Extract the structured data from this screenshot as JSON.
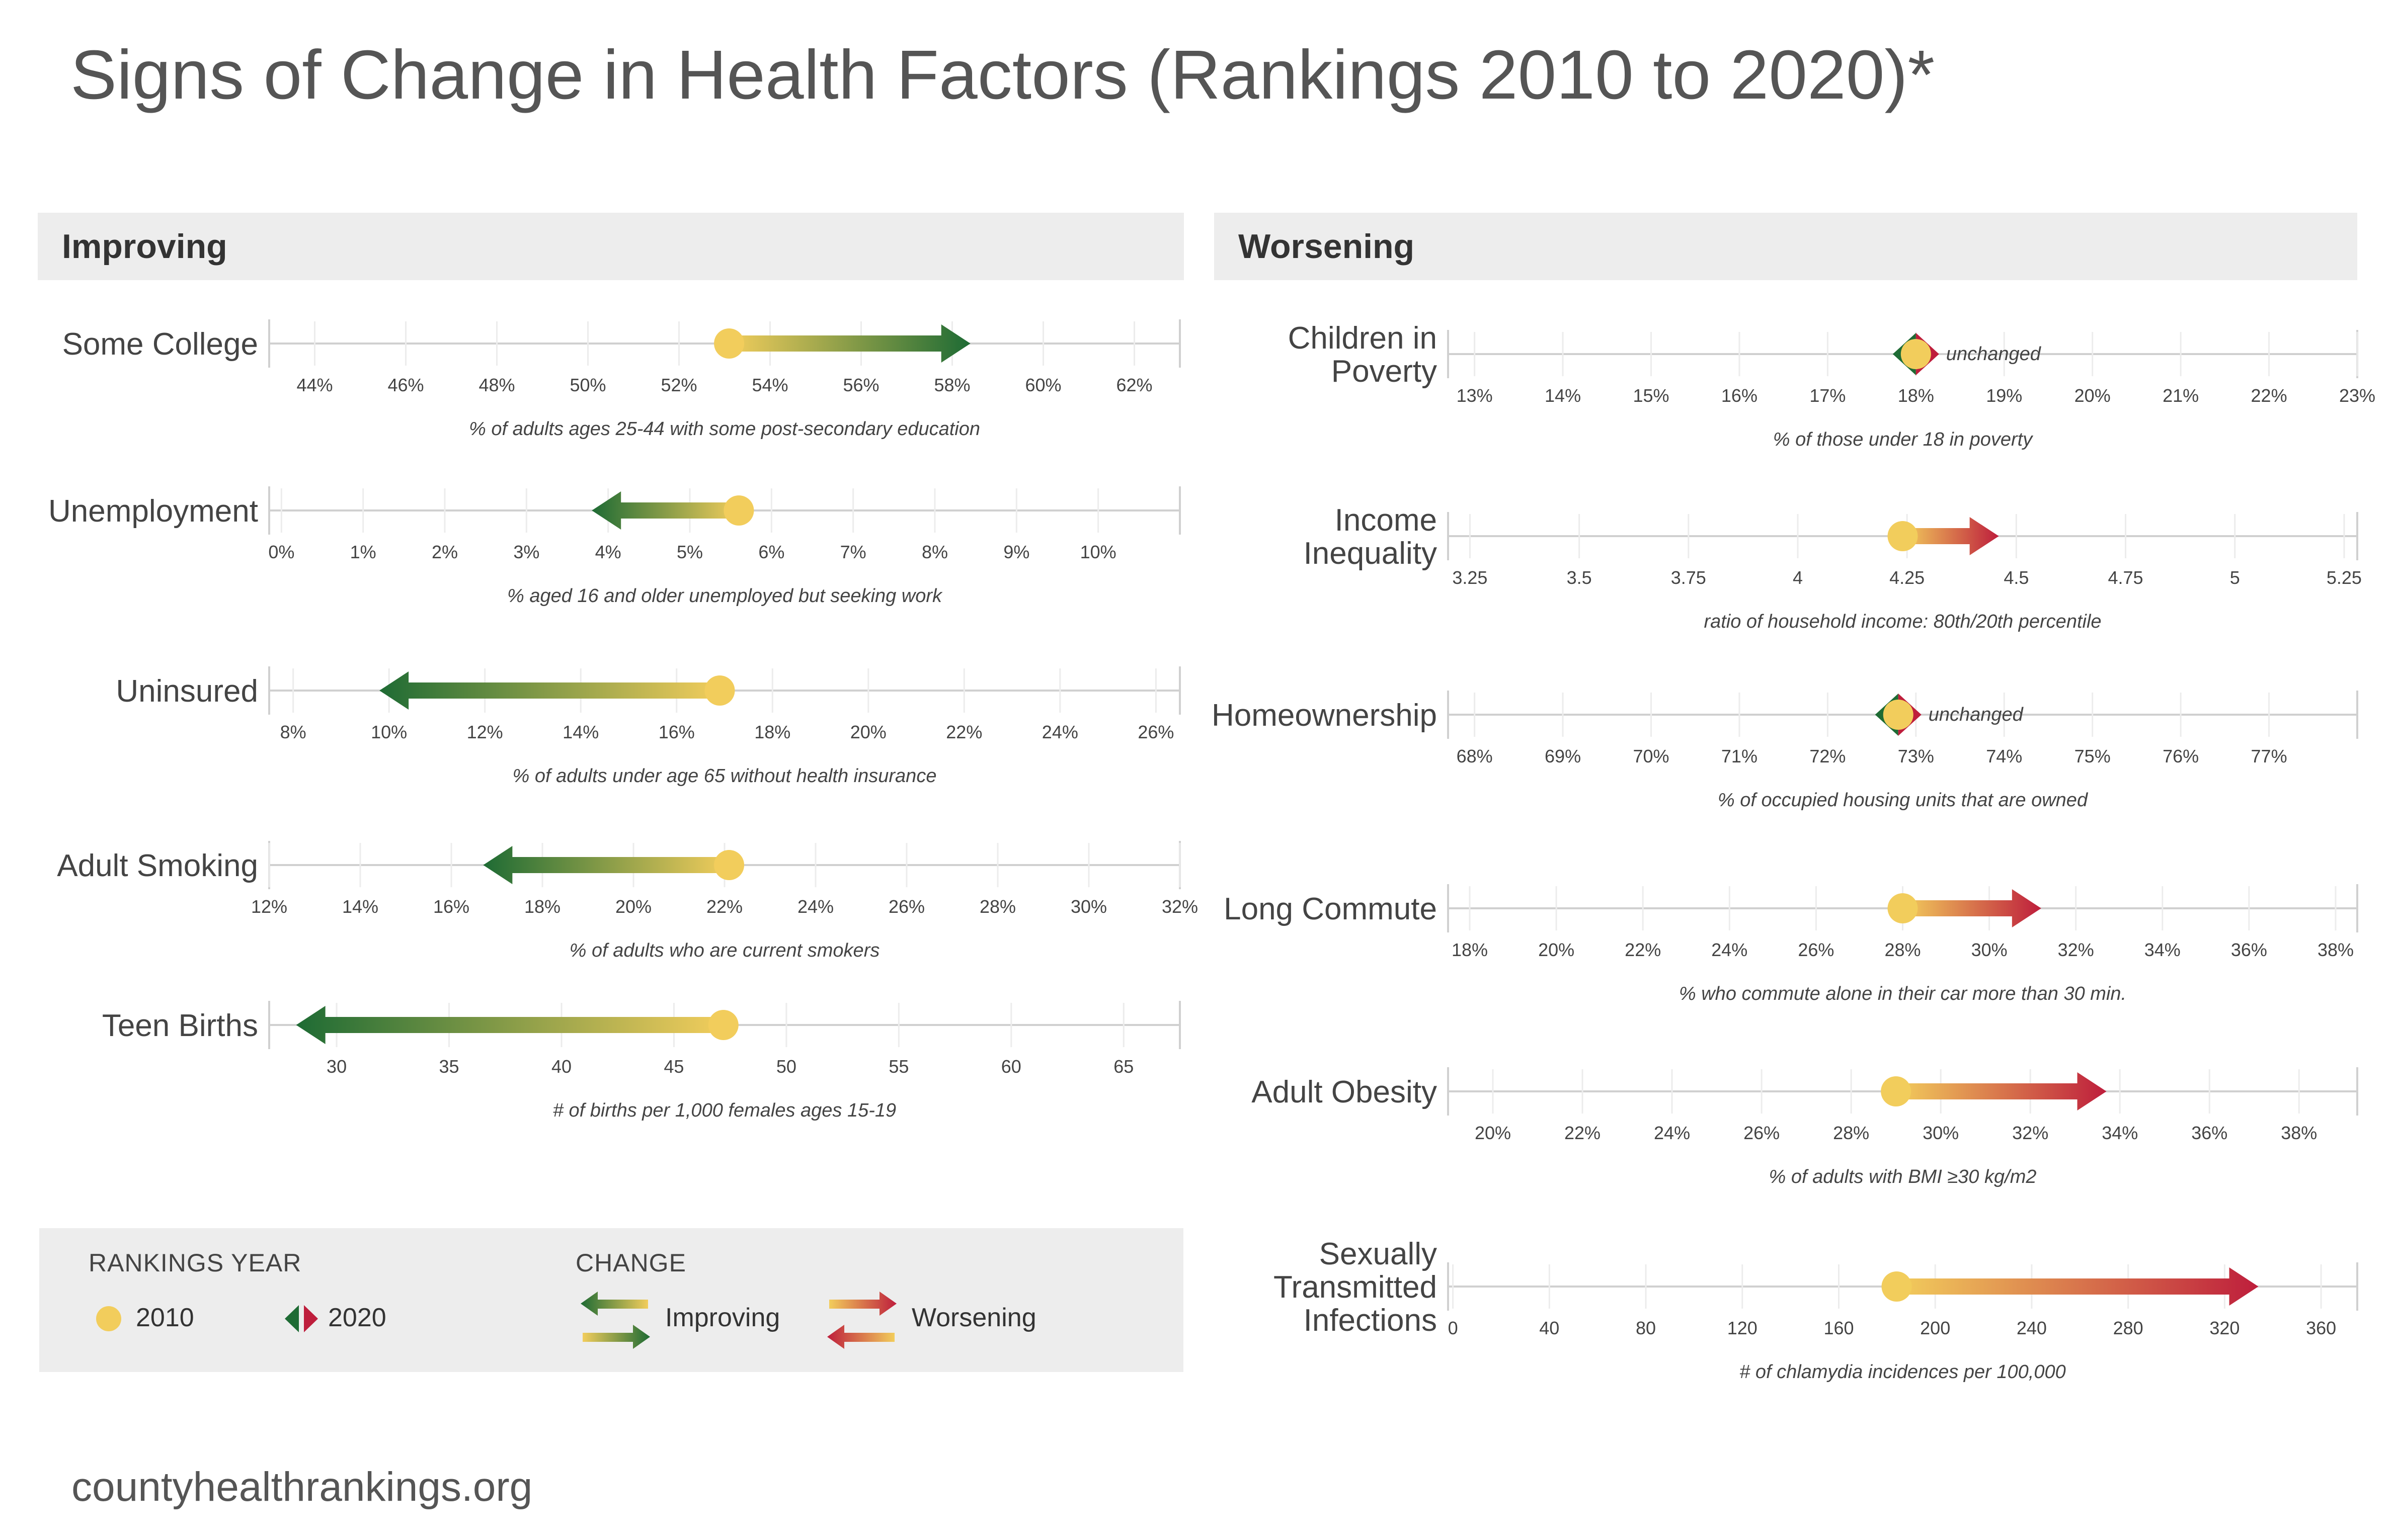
{
  "title": "Signs of Change in Health Factors (Rankings 2010 to 2020)*",
  "sections": {
    "improving": "Improving",
    "worsening": "Worsening"
  },
  "colors": {
    "improving": "#1e6b34",
    "worsening": "#be1e3c",
    "start": "#f2cd5c",
    "axis": "#d0d0d0",
    "text": "#444444"
  },
  "chart_data": [
    {
      "group": "improving",
      "type": "range",
      "title": [
        "Some College"
      ],
      "xlabel": "% of adults ages 25-44 with some post-secondary education",
      "ticks": [
        "44%",
        "46%",
        "48%",
        "50%",
        "52%",
        "54%",
        "56%",
        "58%",
        "60%",
        "62%"
      ],
      "tick_values": [
        44,
        46,
        48,
        50,
        52,
        54,
        56,
        58,
        60,
        62
      ],
      "xlim": [
        43,
        63
      ],
      "start": 53.1,
      "end": 58.4,
      "direction": "improving"
    },
    {
      "group": "improving",
      "type": "range",
      "title": [
        "Unemployment"
      ],
      "xlabel": "% aged 16 and older unemployed but seeking work",
      "ticks": [
        "0%",
        "1%",
        "2%",
        "3%",
        "4%",
        "5%",
        "6%",
        "7%",
        "8%",
        "9%",
        "10%"
      ],
      "tick_values": [
        0,
        1,
        2,
        3,
        4,
        5,
        6,
        7,
        8,
        9,
        10
      ],
      "xlim": [
        -0.15,
        11
      ],
      "start": 5.6,
      "end": 3.8,
      "direction": "improving"
    },
    {
      "group": "improving",
      "type": "range",
      "title": [
        "Uninsured"
      ],
      "xlabel": "% of adults under age 65 without health insurance",
      "ticks": [
        "8%",
        "10%",
        "12%",
        "14%",
        "16%",
        "18%",
        "20%",
        "22%",
        "24%",
        "26%"
      ],
      "tick_values": [
        8,
        10,
        12,
        14,
        16,
        18,
        20,
        22,
        24,
        26
      ],
      "xlim": [
        7.5,
        26.5
      ],
      "start": 16.9,
      "end": 9.8,
      "direction": "improving"
    },
    {
      "group": "improving",
      "type": "range",
      "title": [
        "Adult Smoking"
      ],
      "xlabel": "% of adults who are current smokers",
      "ticks": [
        "12%",
        "14%",
        "16%",
        "18%",
        "20%",
        "22%",
        "24%",
        "26%",
        "28%",
        "30%",
        "32%"
      ],
      "tick_values": [
        12,
        14,
        16,
        18,
        20,
        22,
        24,
        26,
        28,
        30,
        32
      ],
      "xlim": [
        12,
        32
      ],
      "start": 22.1,
      "end": 16.7,
      "direction": "improving"
    },
    {
      "group": "improving",
      "type": "range",
      "title": [
        "Teen Births"
      ],
      "xlabel": "# of births per 1,000 females ages 15-19",
      "ticks": [
        "30",
        "35",
        "40",
        "45",
        "50",
        "55",
        "60",
        "65"
      ],
      "tick_values": [
        30,
        35,
        40,
        45,
        50,
        55,
        60,
        65
      ],
      "xlim": [
        27,
        67.5
      ],
      "start": 47.2,
      "end": 28.2,
      "direction": "improving"
    },
    {
      "group": "worsening",
      "type": "range",
      "title": [
        "Children in",
        "Poverty"
      ],
      "xlabel": "% of those under 18 in poverty",
      "ticks": [
        "13%",
        "14%",
        "15%",
        "16%",
        "17%",
        "18%",
        "19%",
        "20%",
        "21%",
        "22%",
        "23%"
      ],
      "tick_values": [
        13,
        14,
        15,
        16,
        17,
        18,
        19,
        20,
        21,
        22,
        23
      ],
      "xlim": [
        12.7,
        23
      ],
      "start": 18.0,
      "end": 18.0,
      "direction": "unchanged",
      "note": "unchanged"
    },
    {
      "group": "worsening",
      "type": "range",
      "title": [
        "Income",
        "Inequality"
      ],
      "xlabel": "ratio of household income: 80th/20th percentile",
      "ticks": [
        "3.25",
        "3.5",
        "3.75",
        "4",
        "4.25",
        "4.5",
        "4.75",
        "5",
        "5.25"
      ],
      "tick_values": [
        3.25,
        3.5,
        3.75,
        4,
        4.25,
        4.5,
        4.75,
        5,
        5.25
      ],
      "xlim": [
        3.2,
        5.28
      ],
      "start": 4.24,
      "end": 4.46,
      "direction": "worsening"
    },
    {
      "group": "worsening",
      "type": "range",
      "title": [
        "Homeownership"
      ],
      "xlabel": "% of occupied housing units that are owned",
      "ticks": [
        "68%",
        "69%",
        "70%",
        "71%",
        "72%",
        "73%",
        "74%",
        "75%",
        "76%",
        "77%"
      ],
      "tick_values": [
        68,
        69,
        70,
        71,
        72,
        73,
        74,
        75,
        76,
        77
      ],
      "xlim": [
        67.7,
        78
      ],
      "start": 72.8,
      "end": 72.8,
      "direction": "unchanged",
      "note": "unchanged"
    },
    {
      "group": "worsening",
      "type": "range",
      "title": [
        "Long Commute"
      ],
      "xlabel": "% who commute alone in their car more than 30 min.",
      "ticks": [
        "18%",
        "20%",
        "22%",
        "24%",
        "26%",
        "28%",
        "30%",
        "32%",
        "34%",
        "36%",
        "38%"
      ],
      "tick_values": [
        18,
        20,
        22,
        24,
        26,
        28,
        30,
        32,
        34,
        36,
        38
      ],
      "xlim": [
        17.5,
        38.5
      ],
      "start": 28.0,
      "end": 31.2,
      "direction": "worsening"
    },
    {
      "group": "worsening",
      "type": "range",
      "title": [
        "Adult Obesity"
      ],
      "xlabel": "% of adults with BMI ≥30 kg/m2",
      "ticks": [
        "20%",
        "22%",
        "24%",
        "26%",
        "28%",
        "30%",
        "32%",
        "34%",
        "36%",
        "38%"
      ],
      "tick_values": [
        20,
        22,
        24,
        26,
        28,
        30,
        32,
        34,
        36,
        38
      ],
      "xlim": [
        19,
        39.3
      ],
      "start": 29.0,
      "end": 33.7,
      "direction": "worsening"
    },
    {
      "group": "worsening",
      "type": "range",
      "title": [
        "Sexually",
        "Transmitted",
        "Infections"
      ],
      "xlabel": "# of chlamydia incidences per 100,000",
      "ticks": [
        "0",
        "40",
        "80",
        "120",
        "160",
        "200",
        "240",
        "280",
        "320",
        "360"
      ],
      "tick_values": [
        0,
        40,
        80,
        120,
        160,
        200,
        240,
        280,
        320,
        360
      ],
      "xlim": [
        -2,
        375
      ],
      "start": 184,
      "end": 334,
      "direction": "worsening"
    }
  ],
  "legend": {
    "rankings_year_label": "RANKINGS YEAR",
    "year_2010": "2010",
    "year_2020": "2020",
    "change_label": "CHANGE",
    "improving": "Improving",
    "worsening": "Worsening"
  },
  "footer": "countyhealthrankings.org"
}
